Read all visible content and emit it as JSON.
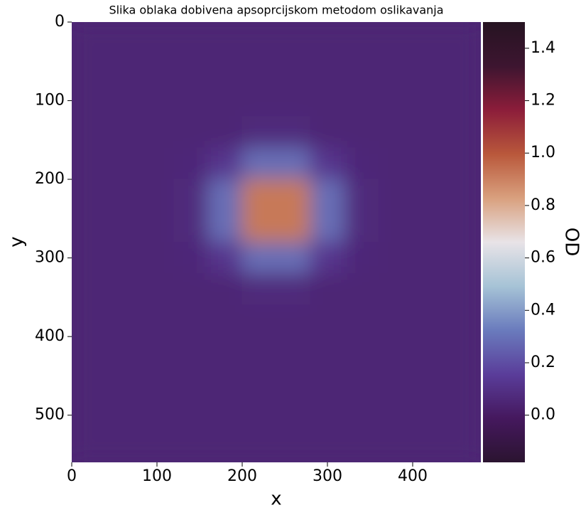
{
  "chart_data": {
    "type": "heatmap",
    "title": "Slika oblaka dobivena apsoprcijskom metodom oslikavanja",
    "x_label": "x",
    "y_label": "y",
    "colorbar_label": "OD",
    "xlim": [
      0,
      480
    ],
    "ylim": [
      560,
      0
    ],
    "xticks": [
      0,
      100,
      200,
      300,
      400
    ],
    "yticks": [
      0,
      100,
      200,
      300,
      400,
      500
    ],
    "zlim": [
      -0.18,
      1.5
    ],
    "zticks": [
      {
        "value": 0,
        "label": "0.0"
      },
      0.2,
      0.4,
      0.6,
      0.8,
      {
        "value": 1,
        "label": "1.0"
      },
      1.2,
      1.4
    ],
    "colorscale": [
      "#2b1430",
      "#45185e",
      "#5a3d9a",
      "#6a7bbd",
      "#a6c3d6",
      "#e8e3e7",
      "#d9a07e",
      "#b9583b",
      "#8c1d3a",
      "#3d1530",
      "#261422"
    ],
    "z": [
      [
        0.05,
        0.05,
        0.05,
        0.05,
        0.05,
        0.05,
        0.05,
        0.05,
        0.05,
        0.05,
        0.05,
        0.05
      ],
      [
        0.05,
        0.05,
        0.05,
        0.05,
        0.05,
        0.05,
        0.05,
        0.05,
        0.05,
        0.05,
        0.05,
        0.05
      ],
      [
        0.05,
        0.05,
        0.05,
        0.05,
        0.05,
        0.05,
        0.05,
        0.05,
        0.05,
        0.05,
        0.05,
        0.05
      ],
      [
        0.05,
        0.05,
        0.05,
        0.05,
        0.05,
        0.07,
        0.07,
        0.05,
        0.05,
        0.05,
        0.05,
        0.05
      ],
      [
        0.05,
        0.05,
        0.05,
        0.06,
        0.12,
        0.29,
        0.29,
        0.12,
        0.06,
        0.05,
        0.05,
        0.05
      ],
      [
        0.05,
        0.05,
        0.05,
        0.07,
        0.29,
        0.92,
        0.92,
        0.29,
        0.07,
        0.05,
        0.05,
        0.05
      ],
      [
        0.05,
        0.05,
        0.05,
        0.07,
        0.29,
        0.92,
        0.92,
        0.29,
        0.07,
        0.05,
        0.05,
        0.05
      ],
      [
        0.05,
        0.05,
        0.05,
        0.06,
        0.12,
        0.29,
        0.29,
        0.12,
        0.06,
        0.05,
        0.05,
        0.05
      ],
      [
        0.05,
        0.05,
        0.05,
        0.05,
        0.05,
        0.07,
        0.07,
        0.05,
        0.05,
        0.05,
        0.05,
        0.05
      ],
      [
        0.05,
        0.05,
        0.05,
        0.05,
        0.05,
        0.05,
        0.05,
        0.05,
        0.05,
        0.05,
        0.05,
        0.05
      ],
      [
        0.05,
        0.05,
        0.05,
        0.05,
        0.05,
        0.05,
        0.05,
        0.05,
        0.05,
        0.05,
        0.05,
        0.05
      ],
      [
        0.05,
        0.05,
        0.05,
        0.05,
        0.05,
        0.05,
        0.05,
        0.05,
        0.05,
        0.05,
        0.05,
        0.05
      ],
      [
        0.05,
        0.05,
        0.05,
        0.05,
        0.05,
        0.05,
        0.05,
        0.05,
        0.05,
        0.05,
        0.05,
        0.05
      ],
      [
        0.05,
        0.05,
        0.05,
        0.05,
        0.05,
        0.05,
        0.05,
        0.05,
        0.05,
        0.05,
        0.05,
        0.05
      ]
    ]
  }
}
